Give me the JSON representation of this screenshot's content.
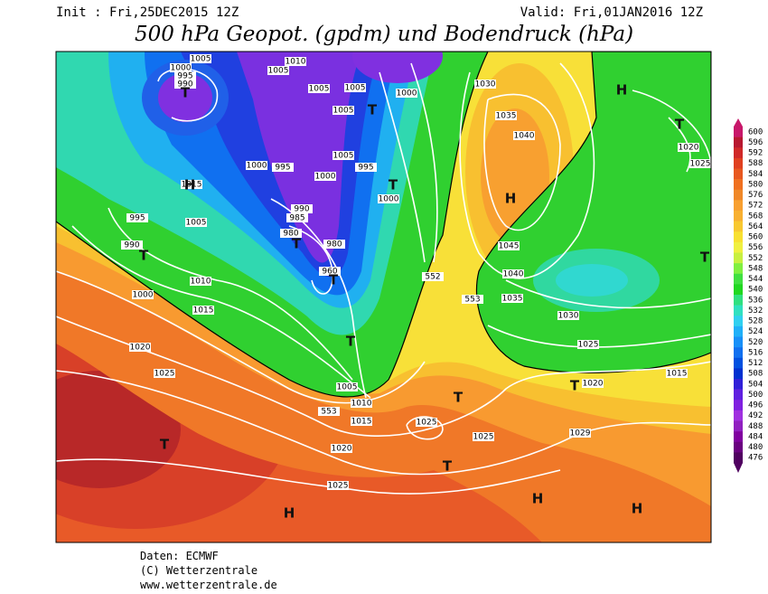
{
  "header": {
    "init": "Init : Fri,25DEC2015 12Z",
    "valid": "Valid: Fri,01JAN2016 12Z",
    "title": "500 hPa Geopot. (gpdm) und Bodendruck (hPa)"
  },
  "colorbar": {
    "levels": [
      600,
      596,
      592,
      588,
      584,
      580,
      576,
      572,
      568,
      564,
      560,
      556,
      552,
      548,
      544,
      540,
      536,
      532,
      528,
      524,
      520,
      516,
      512,
      508,
      504,
      500,
      496,
      492,
      488,
      484,
      480,
      476
    ],
    "colors": [
      "#c8186a",
      "#b81830",
      "#d02828",
      "#e04020",
      "#e85820",
      "#f07020",
      "#f08828",
      "#f8a030",
      "#f8b030",
      "#f8c830",
      "#f8e030",
      "#f0f040",
      "#c8f040",
      "#80f040",
      "#40e040",
      "#20d820",
      "#30e080",
      "#30e0c0",
      "#30d0f0",
      "#20b0f8",
      "#1890f8",
      "#1070f0",
      "#0050e0",
      "#0030d0",
      "#3020d8",
      "#6020e0",
      "#8020e0",
      "#a030e0",
      "#9020c0",
      "#8000a0",
      "#6a0080",
      "#500060"
    ]
  },
  "map": {
    "isobar_labels": [
      1005,
      1000,
      995,
      990,
      1005,
      1010,
      1005,
      1005,
      1000,
      1005,
      1030,
      1035,
      1040,
      1020,
      1025,
      1000,
      995,
      1000,
      1005,
      995,
      1000,
      1015,
      1005,
      995,
      990,
      990,
      985,
      980,
      980,
      960,
      1010,
      1015,
      1000,
      1045,
      1040,
      1035,
      1030,
      1025,
      1020,
      1025,
      1015,
      1020,
      1005,
      1010,
      1015,
      1025,
      1025,
      1029,
      1020,
      1025
    ],
    "geopotential_labels": [
      552,
      553,
      553
    ],
    "pressure_centers": [
      "T",
      "T",
      "T",
      "H",
      "H",
      "H",
      "T",
      "T",
      "T",
      "T",
      "T",
      "T",
      "T",
      "T",
      "H",
      "H",
      "H",
      "T",
      "T"
    ]
  },
  "footer": {
    "lines": [
      "Daten: ECMWF",
      "(C) Wetterzentrale",
      "www.wetterzentrale.de"
    ]
  }
}
